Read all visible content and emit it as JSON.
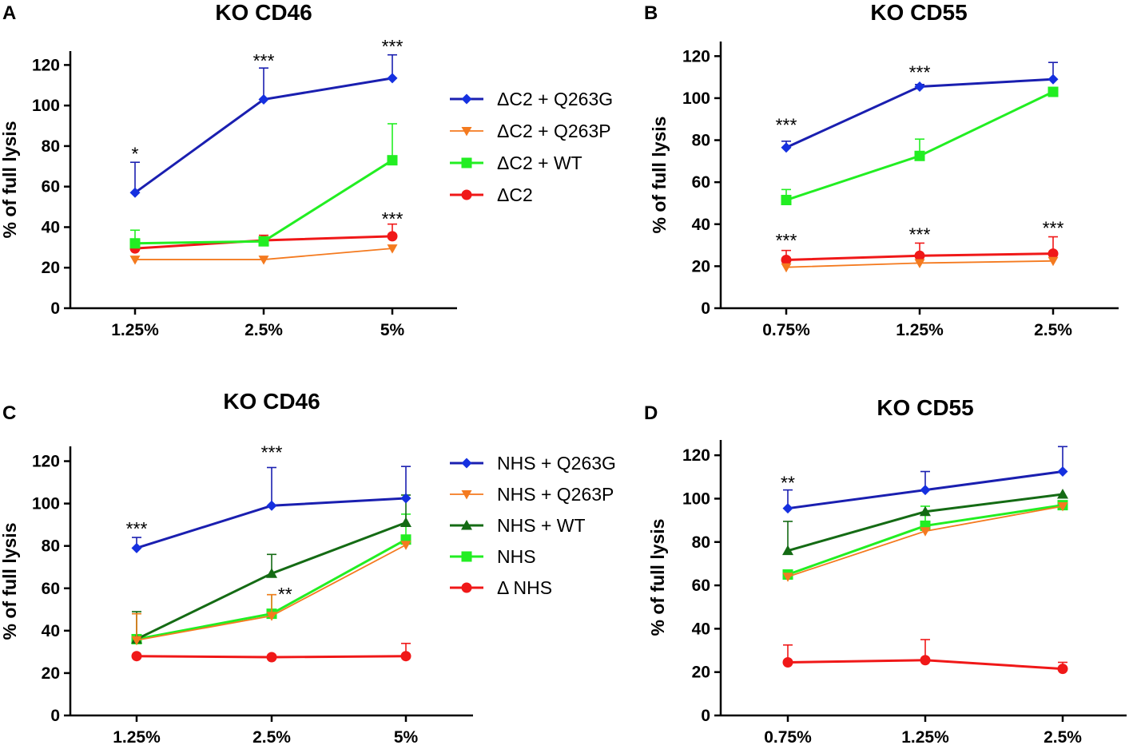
{
  "colors": {
    "blue": "#1a1fb0",
    "blue_marker": "#1530e0",
    "orange": "#f47a1f",
    "green": "#22ee22",
    "dkgreen": "#146b14",
    "red": "#f01818"
  },
  "chart_data": [
    {
      "panel": "A",
      "title": "KO CD46",
      "type": "line",
      "xlabel": "",
      "ylabel": "% of full lysis",
      "ylim": [
        0,
        130
      ],
      "yticks": [
        0,
        20,
        40,
        60,
        80,
        100,
        120
      ],
      "categories": [
        "1.25%",
        "2.5%",
        "5%"
      ],
      "series": [
        {
          "name": "ΔC2 + Q263G",
          "color": "blue",
          "marker": "diamond",
          "values": [
            57,
            103,
            113.5
          ],
          "errors": [
            15,
            15.5,
            11.5
          ]
        },
        {
          "name": "ΔC2 + Q263P",
          "color": "orange",
          "marker": "triangle-down",
          "values": [
            24,
            24,
            29.5
          ],
          "errors": [
            0,
            0,
            0
          ]
        },
        {
          "name": "ΔC2 + WT",
          "color": "green",
          "marker": "square",
          "values": [
            32,
            33,
            73
          ],
          "errors": [
            6.5,
            2,
            18
          ]
        },
        {
          "name": "ΔC2",
          "color": "red",
          "marker": "circle",
          "values": [
            29.5,
            33.5,
            35.5
          ],
          "errors": [
            2,
            2.5,
            6
          ]
        }
      ],
      "annotations": [
        {
          "text": "*",
          "category": 0,
          "value": 77
        },
        {
          "text": "***",
          "category": 1,
          "value": 123
        },
        {
          "text": "***",
          "category": 2,
          "value": 130
        },
        {
          "text": "***",
          "category": 2,
          "value": 45
        }
      ]
    },
    {
      "panel": "B",
      "title": "KO CD55",
      "type": "line",
      "xlabel": "",
      "ylabel": "% of full lysis",
      "ylim": [
        0,
        130
      ],
      "yticks": [
        0,
        20,
        40,
        60,
        80,
        100,
        120
      ],
      "categories": [
        "0.75%",
        "1.25%",
        "2.5%"
      ],
      "series": [
        {
          "name": "ΔC2 + Q263G",
          "color": "blue",
          "marker": "diamond",
          "values": [
            76.5,
            105.5,
            109
          ],
          "errors": [
            3,
            1,
            8
          ]
        },
        {
          "name": "ΔC2 + Q263P",
          "color": "orange",
          "marker": "triangle-down",
          "values": [
            19.5,
            21.5,
            22.5
          ],
          "errors": [
            0,
            0,
            0
          ]
        },
        {
          "name": "ΔC2 + WT",
          "color": "green",
          "marker": "square",
          "values": [
            51.5,
            72.5,
            103
          ],
          "errors": [
            5,
            8,
            0
          ]
        },
        {
          "name": "ΔC2",
          "color": "red",
          "marker": "circle",
          "values": [
            23,
            25,
            26
          ],
          "errors": [
            4.5,
            6,
            8
          ]
        }
      ],
      "annotations": [
        {
          "text": "***",
          "category": 0,
          "value": 88
        },
        {
          "text": "***",
          "category": 1,
          "value": 113
        },
        {
          "text": "***",
          "category": 0,
          "value": 33
        },
        {
          "text": "***",
          "category": 1,
          "value": 36
        },
        {
          "text": "***",
          "category": 2,
          "value": 39
        }
      ]
    },
    {
      "panel": "C",
      "title": "KO CD46",
      "type": "line",
      "xlabel": "",
      "ylabel": "% of full lysis",
      "ylim": [
        0,
        130
      ],
      "yticks": [
        0,
        20,
        40,
        60,
        80,
        100,
        120
      ],
      "categories": [
        "1.25%",
        "2.5%",
        "5%"
      ],
      "series": [
        {
          "name": "NHS + Q263G",
          "color": "blue",
          "marker": "diamond",
          "values": [
            79,
            99,
            102.5
          ],
          "errors": [
            5,
            18,
            15
          ]
        },
        {
          "name": "NHS + Q263P",
          "color": "orange",
          "marker": "triangle-down",
          "values": [
            35.5,
            47,
            80.5
          ],
          "errors": [
            12.5,
            10,
            0
          ]
        },
        {
          "name": "NHS + WT",
          "color": "dkgreen",
          "marker": "triangle-up",
          "values": [
            36,
            67,
            91
          ],
          "errors": [
            13,
            9,
            13
          ]
        },
        {
          "name": "NHS",
          "color": "green",
          "marker": "square",
          "values": [
            36,
            48,
            83
          ],
          "errors": [
            12,
            9,
            12
          ]
        },
        {
          "name": "Δ NHS",
          "color": "red",
          "marker": "circle",
          "values": [
            28,
            27.5,
            28
          ],
          "errors": [
            0,
            0,
            6
          ]
        }
      ],
      "annotations": [
        {
          "text": "***",
          "category": 0,
          "value": 89
        },
        {
          "text": "***",
          "category": 1,
          "value": 125
        },
        {
          "text": "**",
          "category": 1.1,
          "value": 58
        }
      ]
    },
    {
      "panel": "D",
      "title": "KO CD55",
      "type": "line",
      "xlabel": "",
      "ylabel": "% of full lysis",
      "ylim": [
        0,
        130
      ],
      "yticks": [
        0,
        20,
        40,
        60,
        80,
        100,
        120
      ],
      "categories": [
        "0.75%",
        "1.25%",
        "2.5%"
      ],
      "series": [
        {
          "name": "NHS + Q263G",
          "color": "blue",
          "marker": "diamond",
          "values": [
            95.5,
            104,
            112.5
          ],
          "errors": [
            8.5,
            8.5,
            11.5
          ]
        },
        {
          "name": "NHS + Q263P",
          "color": "orange",
          "marker": "triangle-down",
          "values": [
            64,
            85,
            96.5
          ],
          "errors": [
            0,
            0,
            0
          ]
        },
        {
          "name": "NHS + WT",
          "color": "dkgreen",
          "marker": "triangle-up",
          "values": [
            76,
            94,
            102
          ],
          "errors": [
            13.5,
            0,
            0
          ]
        },
        {
          "name": "NHS",
          "color": "green",
          "marker": "square",
          "values": [
            65,
            87.5,
            97
          ],
          "errors": [
            0,
            9,
            0
          ]
        },
        {
          "name": "Δ NHS",
          "color": "red",
          "marker": "circle",
          "values": [
            24.5,
            25.5,
            21.5
          ],
          "errors": [
            8,
            9.5,
            3
          ]
        }
      ],
      "annotations": [
        {
          "text": "**",
          "category": 0,
          "value": 108
        }
      ]
    }
  ]
}
